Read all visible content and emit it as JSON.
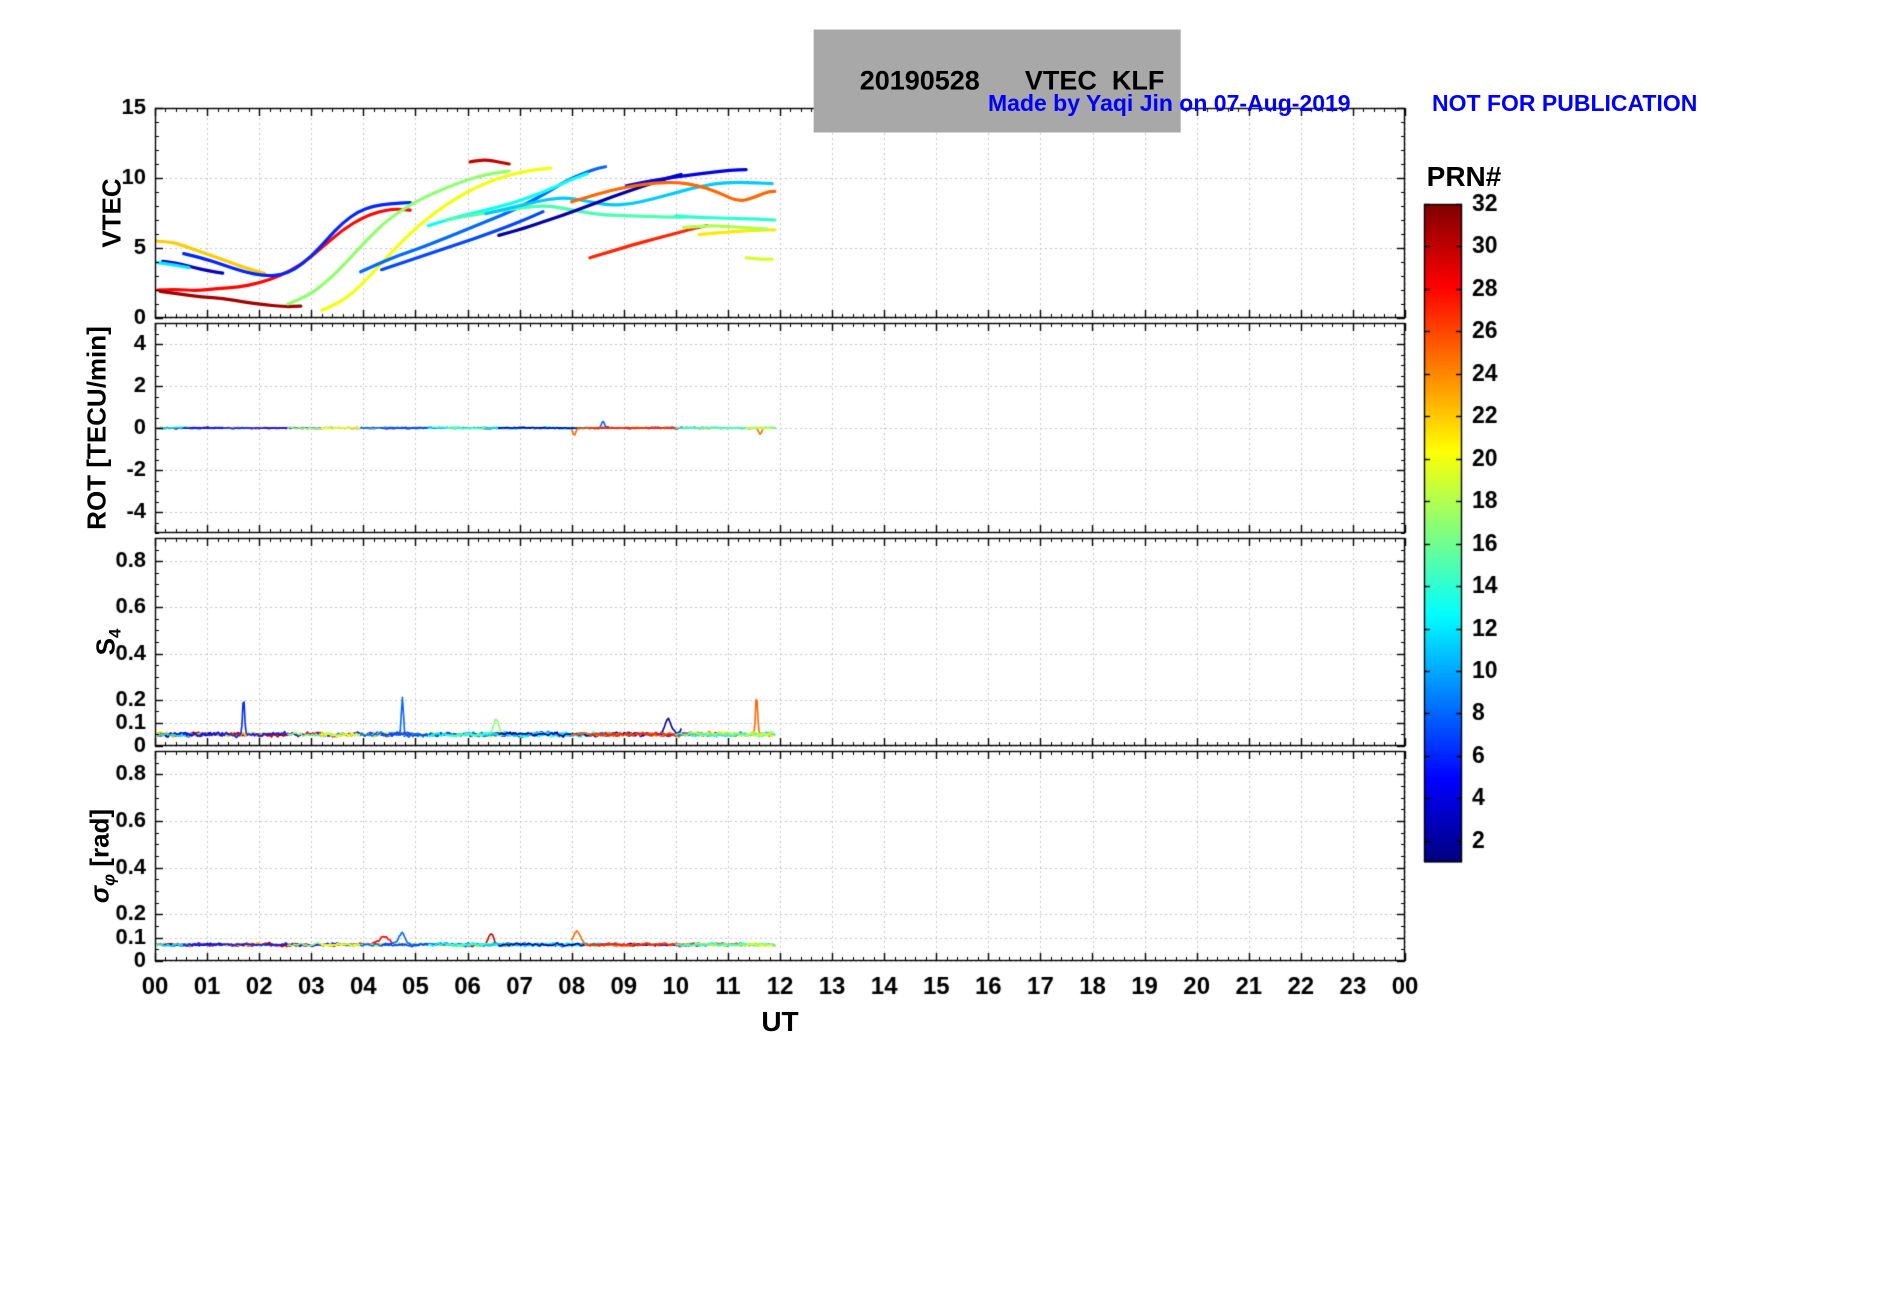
{
  "title": {
    "text": "20190528      VTEC  KLF"
  },
  "annotation": {
    "made_by": "Made by Yaqi Jin on 07-Aug-2019",
    "warning": "NOT FOR PUBLICATION",
    "color": "#0000ff"
  },
  "xlabel": "UT",
  "x_axis": {
    "min": 0,
    "max": 24,
    "ticks": [
      0,
      1,
      2,
      3,
      4,
      5,
      6,
      7,
      8,
      9,
      10,
      11,
      12,
      13,
      14,
      15,
      16,
      17,
      18,
      19,
      20,
      21,
      22,
      23,
      24
    ],
    "labels": [
      "00",
      "01",
      "02",
      "03",
      "04",
      "05",
      "06",
      "07",
      "08",
      "09",
      "10",
      "11",
      "12",
      "13",
      "14",
      "15",
      "16",
      "17",
      "18",
      "19",
      "20",
      "21",
      "22",
      "23",
      "00"
    ]
  },
  "colorbar": {
    "title": "PRN#",
    "min": 1,
    "max": 32,
    "ticks": [
      2,
      4,
      6,
      8,
      10,
      12,
      14,
      16,
      18,
      20,
      22,
      24,
      26,
      28,
      30,
      32
    ],
    "colormap": "jet"
  },
  "panels": [
    {
      "name": "vtec",
      "ylabel": "VTEC",
      "ymin": 0,
      "ymax": 15,
      "yticks": [
        0,
        5,
        10,
        15
      ],
      "ytick_labels": [
        "0",
        "5",
        "10",
        "15"
      ],
      "minor_step": 1
    },
    {
      "name": "rot",
      "ylabel": "ROT [TECU/min]",
      "ymin": -5,
      "ymax": 5,
      "yticks": [
        -4,
        -2,
        0,
        2,
        4
      ],
      "ytick_labels": [
        "-4",
        "-2",
        "0",
        "2",
        "4"
      ],
      "minor_step": 0.5
    },
    {
      "name": "s4",
      "ylabel_main": "S",
      "ylabel_sub": "4",
      "ymin": 0,
      "ymax": 0.9,
      "yticks": [
        0,
        0.1,
        0.2,
        0.4,
        0.6,
        0.8
      ],
      "ytick_labels": [
        "0",
        "0.1",
        "0.2",
        "0.4",
        "0.6",
        "0.8"
      ],
      "minor_step": 0.05
    },
    {
      "name": "sigma",
      "ylabel_sym": "σ",
      "ylabel_sub": "φ",
      "ylabel_unit": " [rad]",
      "ymin": 0,
      "ymax": 0.9,
      "yticks": [
        0,
        0.1,
        0.2,
        0.4,
        0.6,
        0.8
      ],
      "ytick_labels": [
        "0",
        "0.1",
        "0.2",
        "0.4",
        "0.6",
        "0.8"
      ],
      "minor_step": 0.05
    }
  ],
  "chart_data": [
    {
      "type": "line",
      "title": "VTEC",
      "xlabel": "UT",
      "ylabel": "VTEC",
      "xlim": [
        0,
        24
      ],
      "ylim": [
        0,
        15
      ],
      "grid": true,
      "legend": "colorbar PRN# 1-32 (jet)",
      "series": [
        {
          "prn": 28,
          "points": [
            [
              0.05,
              2.0
            ],
            [
              0.4,
              2.05
            ],
            [
              0.8,
              1.95
            ],
            [
              1.2,
              2.1
            ],
            [
              1.6,
              2.2
            ],
            [
              2.0,
              2.5
            ],
            [
              2.4,
              3.0
            ],
            [
              2.8,
              3.8
            ],
            [
              3.2,
              5.0
            ],
            [
              3.6,
              6.3
            ],
            [
              4.0,
              7.2
            ],
            [
              4.3,
              7.6
            ],
            [
              4.6,
              7.8
            ],
            [
              4.9,
              7.7
            ]
          ]
        },
        {
          "prn": 31,
          "points": [
            [
              0.1,
              1.9
            ],
            [
              0.5,
              1.7
            ],
            [
              0.9,
              1.5
            ],
            [
              1.3,
              1.4
            ],
            [
              1.7,
              1.15
            ],
            [
              2.1,
              0.95
            ],
            [
              2.5,
              0.8
            ],
            [
              2.8,
              0.85
            ]
          ]
        },
        {
          "prn": 22,
          "points": [
            [
              0.0,
              5.5
            ],
            [
              0.3,
              5.45
            ],
            [
              0.6,
              5.1
            ],
            [
              0.9,
              4.7
            ],
            [
              1.2,
              4.3
            ],
            [
              1.5,
              3.9
            ],
            [
              1.8,
              3.5
            ],
            [
              2.1,
              3.2
            ]
          ]
        },
        {
          "prn": 3,
          "points": [
            [
              0.15,
              4.05
            ],
            [
              0.45,
              3.9
            ],
            [
              0.75,
              3.6
            ],
            [
              1.05,
              3.35
            ],
            [
              1.3,
              3.2
            ]
          ]
        },
        {
          "prn": 12,
          "points": [
            [
              0.05,
              3.95
            ],
            [
              0.35,
              3.8
            ],
            [
              0.65,
              3.6
            ]
          ]
        },
        {
          "prn": 6,
          "points": [
            [
              0.55,
              4.6
            ],
            [
              0.9,
              4.3
            ],
            [
              1.3,
              3.8
            ],
            [
              1.7,
              3.3
            ],
            [
              2.1,
              3.0
            ],
            [
              2.4,
              3.05
            ],
            [
              2.7,
              3.5
            ],
            [
              3.0,
              4.4
            ],
            [
              3.3,
              5.6
            ],
            [
              3.6,
              6.8
            ],
            [
              3.9,
              7.6
            ],
            [
              4.2,
              8.0
            ],
            [
              4.5,
              8.15
            ],
            [
              4.9,
              8.25
            ]
          ]
        },
        {
          "prn": 17,
          "points": [
            [
              2.55,
              1.0
            ],
            [
              2.9,
              1.5
            ],
            [
              3.2,
              2.3
            ],
            [
              3.5,
              3.3
            ],
            [
              3.8,
              4.5
            ],
            [
              4.1,
              5.7
            ],
            [
              4.4,
              6.8
            ],
            [
              4.7,
              7.6
            ],
            [
              5.0,
              8.3
            ],
            [
              5.4,
              9.0
            ],
            [
              5.8,
              9.6
            ],
            [
              6.2,
              10.1
            ],
            [
              6.5,
              10.35
            ],
            [
              6.8,
              10.5
            ]
          ]
        },
        {
          "prn": 20,
          "points": [
            [
              3.2,
              0.55
            ],
            [
              3.5,
              1.0
            ],
            [
              3.8,
              1.8
            ],
            [
              4.1,
              2.9
            ],
            [
              4.4,
              4.1
            ],
            [
              4.7,
              5.3
            ],
            [
              5.0,
              6.4
            ],
            [
              5.4,
              7.6
            ],
            [
              5.8,
              8.6
            ],
            [
              6.2,
              9.4
            ],
            [
              6.6,
              10.0
            ],
            [
              7.0,
              10.4
            ],
            [
              7.4,
              10.65
            ],
            [
              7.6,
              10.7
            ]
          ]
        },
        {
          "prn": 30,
          "points": [
            [
              6.05,
              11.15
            ],
            [
              6.25,
              11.3
            ],
            [
              6.45,
              11.25
            ],
            [
              6.65,
              11.1
            ],
            [
              6.8,
              11.0
            ]
          ]
        },
        {
          "prn": 8,
          "points": [
            [
              3.95,
              3.3
            ],
            [
              4.3,
              3.9
            ],
            [
              4.7,
              4.5
            ],
            [
              5.1,
              5.0
            ],
            [
              5.5,
              5.6
            ],
            [
              5.9,
              6.2
            ],
            [
              6.3,
              6.8
            ],
            [
              6.7,
              7.4
            ],
            [
              7.1,
              8.1
            ],
            [
              7.5,
              8.9
            ],
            [
              7.9,
              9.8
            ],
            [
              8.2,
              10.3
            ],
            [
              8.5,
              10.7
            ],
            [
              8.65,
              10.8
            ]
          ]
        },
        {
          "prn": 7,
          "points": [
            [
              4.35,
              3.45
            ],
            [
              4.75,
              3.95
            ],
            [
              5.15,
              4.45
            ],
            [
              5.55,
              4.95
            ],
            [
              5.95,
              5.45
            ],
            [
              6.35,
              5.95
            ],
            [
              6.75,
              6.5
            ],
            [
              7.15,
              7.1
            ],
            [
              7.45,
              7.6
            ]
          ]
        },
        {
          "prn": 13,
          "points": [
            [
              5.25,
              6.6
            ],
            [
              5.65,
              7.05
            ],
            [
              6.05,
              7.45
            ],
            [
              6.45,
              7.8
            ],
            [
              6.85,
              8.2
            ],
            [
              7.25,
              8.7
            ],
            [
              7.65,
              9.3
            ],
            [
              8.0,
              9.9
            ],
            [
              8.3,
              10.3
            ]
          ]
        },
        {
          "prn": 15,
          "points": [
            [
              5.6,
              7.0
            ],
            [
              6.0,
              7.3
            ],
            [
              6.5,
              7.6
            ],
            [
              7.0,
              7.85
            ],
            [
              7.5,
              8.05
            ],
            [
              7.9,
              7.8
            ],
            [
              8.3,
              7.5
            ],
            [
              8.7,
              7.35
            ],
            [
              9.1,
              7.3
            ],
            [
              9.5,
              7.25
            ],
            [
              9.9,
              7.2
            ],
            [
              10.2,
              7.2
            ]
          ]
        },
        {
          "prn": 11,
          "points": [
            [
              6.35,
              7.45
            ],
            [
              6.75,
              7.8
            ],
            [
              7.15,
              8.15
            ],
            [
              7.55,
              8.5
            ],
            [
              7.95,
              8.6
            ],
            [
              8.35,
              8.3
            ],
            [
              8.75,
              8.05
            ],
            [
              9.15,
              8.15
            ],
            [
              9.55,
              8.5
            ],
            [
              9.95,
              8.9
            ],
            [
              10.35,
              9.3
            ],
            [
              10.75,
              9.6
            ],
            [
              11.15,
              9.7
            ],
            [
              11.55,
              9.65
            ],
            [
              11.85,
              9.6
            ]
          ]
        },
        {
          "prn": 2,
          "points": [
            [
              6.6,
              5.9
            ],
            [
              7.0,
              6.3
            ],
            [
              7.4,
              6.8
            ],
            [
              7.8,
              7.3
            ],
            [
              8.2,
              7.85
            ],
            [
              8.6,
              8.4
            ],
            [
              9.0,
              8.95
            ],
            [
              9.4,
              9.45
            ],
            [
              9.8,
              9.95
            ],
            [
              10.1,
              10.25
            ]
          ]
        },
        {
          "prn": 4,
          "points": [
            [
              9.05,
              9.45
            ],
            [
              9.45,
              9.75
            ],
            [
              9.85,
              10.0
            ],
            [
              10.25,
              10.2
            ],
            [
              10.65,
              10.4
            ],
            [
              11.05,
              10.55
            ],
            [
              11.35,
              10.6
            ]
          ]
        },
        {
          "prn": 25,
          "points": [
            [
              8.0,
              8.3
            ],
            [
              8.4,
              8.75
            ],
            [
              8.8,
              9.15
            ],
            [
              9.2,
              9.45
            ],
            [
              9.6,
              9.65
            ],
            [
              10.0,
              9.7
            ],
            [
              10.4,
              9.5
            ],
            [
              10.8,
              9.0
            ],
            [
              11.2,
              8.3
            ],
            [
              11.5,
              8.6
            ],
            [
              11.75,
              9.0
            ],
            [
              11.9,
              9.05
            ]
          ]
        },
        {
          "prn": 27,
          "points": [
            [
              8.35,
              4.3
            ],
            [
              8.75,
              4.75
            ],
            [
              9.15,
              5.2
            ],
            [
              9.55,
              5.6
            ],
            [
              9.95,
              6.0
            ],
            [
              10.35,
              6.4
            ],
            [
              10.6,
              6.6
            ]
          ]
        },
        {
          "prn": 21,
          "points": [
            [
              10.45,
              5.95
            ],
            [
              10.85,
              6.1
            ],
            [
              11.25,
              6.2
            ],
            [
              11.65,
              6.3
            ],
            [
              11.9,
              6.3
            ]
          ]
        },
        {
          "prn": 18,
          "points": [
            [
              10.15,
              6.45
            ],
            [
              10.55,
              6.6
            ],
            [
              10.95,
              6.55
            ],
            [
              11.35,
              6.45
            ],
            [
              11.75,
              6.35
            ]
          ]
        },
        {
          "prn": 14,
          "points": [
            [
              10.0,
              7.3
            ],
            [
              10.4,
              7.2
            ],
            [
              10.8,
              7.15
            ],
            [
              11.2,
              7.1
            ],
            [
              11.6,
              7.05
            ],
            [
              11.9,
              7.0
            ]
          ]
        },
        {
          "prn": 19,
          "points": [
            [
              11.35,
              4.3
            ],
            [
              11.6,
              4.2
            ],
            [
              11.85,
              4.2
            ]
          ]
        }
      ]
    },
    {
      "type": "line",
      "title": "ROT [TECU/min]",
      "xlim": [
        0,
        24
      ],
      "ylim": [
        -5,
        5
      ],
      "grid": true,
      "baseline": 0,
      "noise": 0.07,
      "spikes": [
        {
          "prn": 25,
          "t": 8.05,
          "amp": -0.35,
          "w": 0.03
        },
        {
          "prn": 8,
          "t": 8.6,
          "amp": 0.3,
          "w": 0.03
        },
        {
          "prn": 25,
          "t": 11.62,
          "amp": -0.3,
          "w": 0.03
        }
      ]
    },
    {
      "type": "line",
      "title": "S4",
      "xlim": [
        0,
        24
      ],
      "ylim": [
        0,
        0.9
      ],
      "grid": true,
      "baseline": 0.05,
      "noise": 0.022,
      "spikes": [
        {
          "prn": 6,
          "t": 1.7,
          "amp": 0.16,
          "w": 0.02
        },
        {
          "prn": 8,
          "t": 4.75,
          "amp": 0.155,
          "w": 0.02
        },
        {
          "prn": 17,
          "t": 6.55,
          "amp": 0.07,
          "w": 0.05
        },
        {
          "prn": 2,
          "t": 9.85,
          "amp": 0.06,
          "w": 0.06
        },
        {
          "prn": 2,
          "t": 10.15,
          "amp": 0.08,
          "w": 0.035
        },
        {
          "prn": 25,
          "t": 11.55,
          "amp": 0.17,
          "w": 0.02
        }
      ]
    },
    {
      "type": "line",
      "title": "sigma_phi [rad]",
      "xlim": [
        0,
        24
      ],
      "ylim": [
        0,
        0.9
      ],
      "grid": true,
      "baseline": 0.07,
      "noise": 0.015,
      "spikes": [
        {
          "prn": 8,
          "t": 4.75,
          "amp": 0.05,
          "w": 0.06
        },
        {
          "prn": 4,
          "t": 4.9,
          "amp": 0.04,
          "w": 0.05
        },
        {
          "prn": 30,
          "t": 6.45,
          "amp": 0.05,
          "w": 0.05
        },
        {
          "prn": 25,
          "t": 8.1,
          "amp": 0.06,
          "w": 0.07
        },
        {
          "prn": 28,
          "t": 4.4,
          "amp": 0.03,
          "w": 0.1
        }
      ]
    }
  ]
}
